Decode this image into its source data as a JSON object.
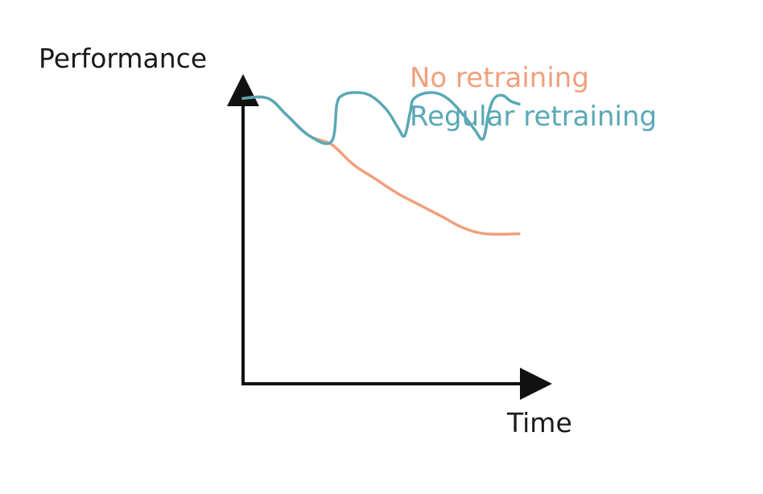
{
  "chart_data": {
    "type": "line",
    "title": "",
    "xlabel": "Time",
    "ylabel": "Performance",
    "xlim": [
      0,
      100
    ],
    "ylim": [
      0,
      100
    ],
    "grid": false,
    "legend_position": "top-right",
    "series": [
      {
        "name": "No retraining",
        "color": "#f0a07c",
        "points": [
          [
            0,
            99
          ],
          [
            9,
            99
          ],
          [
            16,
            93
          ],
          [
            24,
            86
          ],
          [
            32,
            83
          ],
          [
            40,
            76
          ],
          [
            48,
            71
          ],
          [
            56,
            66
          ],
          [
            64,
            62
          ],
          [
            72,
            58
          ],
          [
            80,
            54
          ],
          [
            88,
            52
          ],
          [
            100,
            52
          ]
        ]
      },
      {
        "name": "Regular retraining",
        "color": "#5aa8b5",
        "points": [
          [
            0,
            99
          ],
          [
            9,
            99
          ],
          [
            16,
            93
          ],
          [
            24,
            86
          ],
          [
            32,
            84
          ],
          [
            34,
            97
          ],
          [
            36,
            100
          ],
          [
            40,
            101
          ],
          [
            46,
            100
          ],
          [
            52,
            95
          ],
          [
            56,
            89
          ],
          [
            58.5,
            86
          ],
          [
            60.5,
            94
          ],
          [
            62,
            99
          ],
          [
            68,
            101
          ],
          [
            74,
            99
          ],
          [
            80,
            93
          ],
          [
            84,
            88
          ],
          [
            87,
            85
          ],
          [
            89,
            94
          ],
          [
            91,
            99
          ],
          [
            94,
            100
          ],
          [
            97,
            98
          ],
          [
            100,
            97
          ]
        ]
      }
    ]
  }
}
